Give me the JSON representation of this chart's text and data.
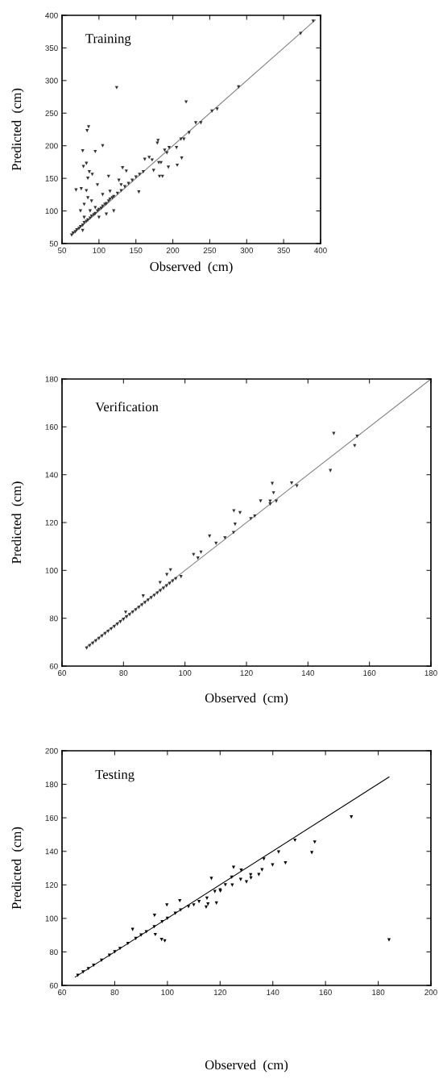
{
  "chart_data": [
    {
      "type": "scatter",
      "title": "Training",
      "xlabel": "Observed  (cm)",
      "ylabel": "Predicted  (cm)",
      "xlim": [
        50,
        400
      ],
      "ylim": [
        50,
        400
      ],
      "xticks": [
        50,
        100,
        150,
        200,
        250,
        300,
        350,
        400
      ],
      "yticks": [
        50,
        100,
        150,
        200,
        250,
        300,
        350,
        400
      ],
      "series": [
        {
          "marker": "triangle",
          "color": "#333333",
          "x": [
            63,
            65,
            68,
            70,
            73,
            75,
            78,
            80,
            83,
            85,
            88,
            90,
            93,
            95,
            98,
            100,
            103,
            105,
            108,
            110,
            113,
            115,
            118,
            120,
            125,
            130,
            135,
            140,
            145,
            150,
            155,
            160,
            75,
            80,
            85,
            90,
            80,
            95,
            100,
            110,
            105,
            120,
            115,
            130,
            78,
            88,
            124,
            218,
            86,
            84,
            78,
            95,
            105,
            79,
            83,
            87,
            85,
            91,
            98,
            69,
            76,
            83,
            113,
            132,
            137,
            179,
            180,
            189,
            192,
            195,
            194,
            206,
            205,
            212,
            211,
            215,
            222,
            231,
            238,
            253,
            260,
            289,
            182,
            186,
            174,
            162,
            168,
            172,
            181,
            184,
            154,
            127,
            373,
            390
          ],
          "values": [
            63,
            66,
            68,
            71,
            73,
            76,
            78,
            82,
            84,
            86,
            89,
            92,
            94,
            96,
            100,
            102,
            104,
            107,
            110,
            111,
            115,
            118,
            120,
            122,
            127,
            131,
            137,
            142,
            147,
            152,
            156,
            160,
            100,
            110,
            120,
            115,
            90,
            105,
            90,
            95,
            125,
            100,
            130,
            140,
            70,
            100,
            289,
            267,
            229,
            223,
            192,
            191,
            200,
            168,
            173,
            160,
            150,
            156,
            140,
            132,
            134,
            131,
            153,
            166,
            161,
            204,
            208,
            193,
            189,
            197,
            167,
            170,
            197,
            181,
            210,
            210,
            220,
            235,
            235,
            253,
            256,
            290,
            153,
            153,
            162,
            179,
            182,
            178,
            174,
            174,
            129,
            147,
            372,
            391
          ]
        },
        {
          "type": "line",
          "marker": "none",
          "color": "#808080",
          "x": [
            63,
            393
          ],
          "values": [
            63,
            393
          ]
        }
      ]
    },
    {
      "type": "scatter",
      "title": "Verification",
      "xlabel": "Observed  (cm)",
      "ylabel": "Predicted  (cm)",
      "xlim": [
        60,
        180
      ],
      "ylim": [
        60,
        180
      ],
      "xticks": [
        60,
        80,
        100,
        120,
        140,
        160,
        180
      ],
      "yticks": [
        60,
        80,
        100,
        120,
        140,
        160,
        180
      ],
      "series": [
        {
          "marker": "triangle",
          "color": "#333333",
          "x": [
            68,
            69,
            70,
            71,
            72,
            73,
            74,
            75,
            76,
            77,
            78,
            79,
            80,
            81,
            82,
            83,
            84,
            85,
            86,
            87,
            88,
            89,
            90,
            91,
            92,
            93,
            94,
            95,
            96,
            97,
            121.4,
            122.7,
            148.4,
            156,
            155.2,
            147.3,
            128.4,
            128.8,
            134.7,
            136.4,
            124.6,
            127.7,
            127.7,
            129.7,
            115.9,
            117.9,
            116.3,
            115.8,
            108,
            110.1,
            113,
            102.8,
            105.2,
            104.2,
            94.1,
            95.3,
            98.7,
            91.9,
            86.4,
            80.7
          ],
          "values": [
            67.5,
            68.5,
            69.5,
            70.5,
            71.5,
            72.5,
            73.5,
            74.5,
            75.5,
            76.5,
            77.5,
            78.5,
            79.5,
            80.5,
            81.5,
            82.5,
            83.5,
            84.5,
            85.5,
            86.5,
            87.5,
            88.5,
            89.5,
            90.5,
            91.5,
            92.5,
            93.5,
            94.5,
            95.5,
            96.5,
            121.6,
            122.7,
            157.2,
            156,
            152.1,
            141.7,
            136.3,
            132.4,
            136.5,
            135.3,
            129,
            128.9,
            127.7,
            128.9,
            124.9,
            124.1,
            119.3,
            115.8,
            114.3,
            111.3,
            113.6,
            106.6,
            107.6,
            105.1,
            98.2,
            100.2,
            97.4,
            94.9,
            89.3,
            82.5
          ]
        },
        {
          "type": "line",
          "marker": "none",
          "color": "#808080",
          "x": [
            68,
            180
          ],
          "values": [
            68,
            180
          ]
        }
      ]
    },
    {
      "type": "scatter",
      "title": "Testing",
      "xlabel": "Observed  (cm)",
      "ylabel": "Predicted  (cm)",
      "xlim": [
        60,
        200
      ],
      "ylim": [
        60,
        200
      ],
      "xticks": [
        60,
        80,
        100,
        120,
        140,
        160,
        180,
        200
      ],
      "yticks": [
        60,
        80,
        100,
        120,
        140,
        160,
        180,
        200
      ],
      "series": [
        {
          "marker": "triangle",
          "color": "#000000",
          "x": [
            66,
            68,
            70,
            72,
            75,
            78,
            80,
            82,
            85,
            88,
            90,
            92,
            95,
            98,
            100,
            103,
            105,
            108,
            110,
            112,
            115,
            118,
            120,
            122,
            169.8,
            184.1,
            155.9,
            154.8,
            148.4,
            142.2,
            144.8,
            139.9,
            136.6,
            135.9,
            134.7,
            131.6,
            131.7,
            130,
            127.8,
            128,
            125.1,
            124.6,
            124.4,
            120.1,
            116.7,
            118.6,
            114.7,
            115.4,
            104.7,
            99.8,
            95.4,
            97.8,
            99,
            86.8,
            95.1
          ],
          "values": [
            66,
            68,
            70,
            72,
            75,
            78,
            80,
            82,
            85,
            88,
            90,
            92,
            95,
            98,
            100,
            103,
            105,
            107,
            108,
            110,
            112,
            116,
            117,
            120,
            160.5,
            87.1,
            145.5,
            139.2,
            146.6,
            139.6,
            133.1,
            131.9,
            135.4,
            129,
            126.1,
            126,
            124.1,
            121.8,
            123.2,
            128.7,
            130.4,
            119.8,
            124.5,
            116.3,
            123.8,
            109.1,
            106.7,
            108.5,
            110.5,
            108,
            90.3,
            87.4,
            86.6,
            93.4,
            101.8
          ]
        },
        {
          "type": "line",
          "marker": "none",
          "color": "#000000",
          "x": [
            65,
            184.1
          ],
          "values": [
            65,
            184.3
          ]
        }
      ]
    }
  ]
}
